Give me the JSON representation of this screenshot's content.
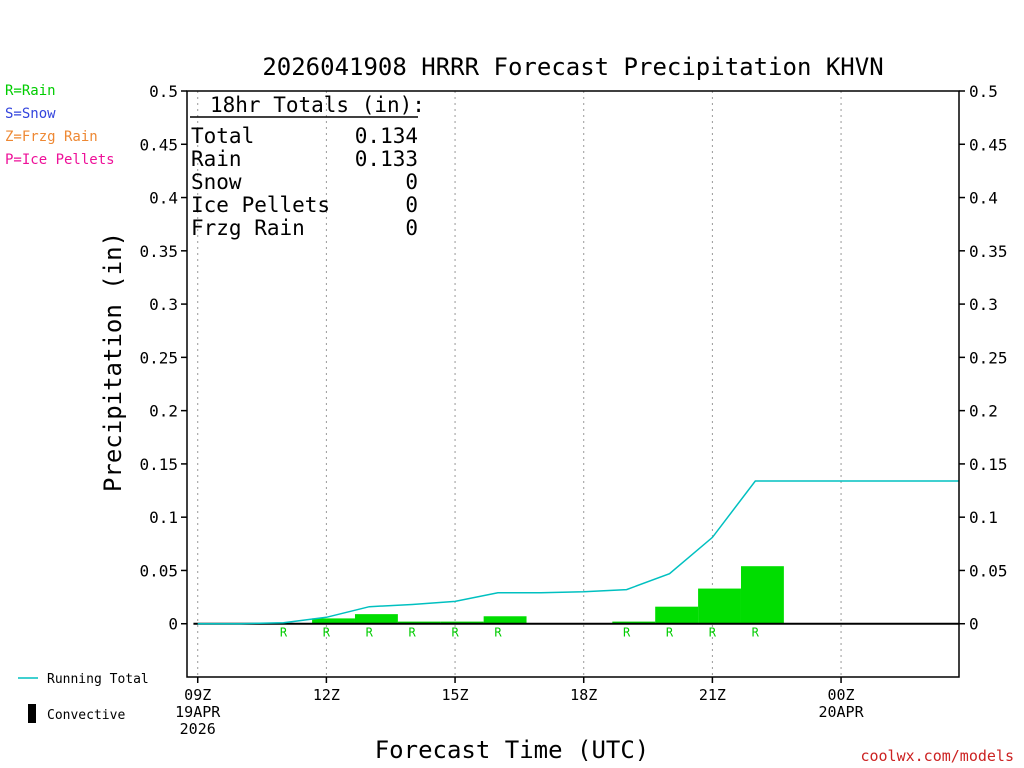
{
  "chart_data": {
    "type": "bar",
    "title": "2026041908 HRRR Forecast Precipitation KHVN",
    "xlabel": "Forecast Time (UTC)",
    "ylabel": "Precipitation (in)",
    "ylim": [
      -0.05,
      0.5
    ],
    "yticks": [
      "0",
      "0.05",
      "0.1",
      "0.15",
      "0.2",
      "0.25",
      "0.3",
      "0.35",
      "0.4",
      "0.45",
      "0.5"
    ],
    "xlim_hours": [
      8.75,
      26.75
    ],
    "xticks": [
      {
        "hour": 9,
        "lines": [
          "09Z",
          "19APR",
          "2026"
        ]
      },
      {
        "hour": 12,
        "lines": [
          "12Z"
        ]
      },
      {
        "hour": 15,
        "lines": [
          "15Z"
        ]
      },
      {
        "hour": 18,
        "lines": [
          "18Z"
        ]
      },
      {
        "hour": 21,
        "lines": [
          "21Z"
        ]
      },
      {
        "hour": 24,
        "lines": [
          "00Z",
          "20APR"
        ]
      }
    ],
    "bars": [
      {
        "hour": 12,
        "value": 0.005,
        "type": "R"
      },
      {
        "hour": 13,
        "value": 0.009,
        "type": "R"
      },
      {
        "hour": 14,
        "value": 0.002,
        "type": "R"
      },
      {
        "hour": 15,
        "value": 0.002,
        "type": "R"
      },
      {
        "hour": 16,
        "value": 0.007,
        "type": "R"
      },
      {
        "hour": 19,
        "value": 0.002,
        "type": "R"
      },
      {
        "hour": 20,
        "value": 0.016,
        "type": "R"
      },
      {
        "hour": 21,
        "value": 0.033,
        "type": "R"
      },
      {
        "hour": 22,
        "value": 0.054,
        "type": "R"
      }
    ],
    "type_markers": [
      {
        "hour": 11,
        "label": "R"
      },
      {
        "hour": 12,
        "label": "R"
      },
      {
        "hour": 13,
        "label": "R"
      },
      {
        "hour": 14,
        "label": "R"
      },
      {
        "hour": 15,
        "label": "R"
      },
      {
        "hour": 16,
        "label": "R"
      },
      {
        "hour": 19,
        "label": "R"
      },
      {
        "hour": 20,
        "label": "R"
      },
      {
        "hour": 21,
        "label": "R"
      },
      {
        "hour": 22,
        "label": "R"
      }
    ],
    "running_total": {
      "name": "Running Total",
      "color": "#00c0c0",
      "points": [
        [
          9,
          0
        ],
        [
          10,
          0
        ],
        [
          11,
          0.001
        ],
        [
          12,
          0.006
        ],
        [
          13,
          0.016
        ],
        [
          14,
          0.018
        ],
        [
          15,
          0.021
        ],
        [
          16,
          0.029
        ],
        [
          17,
          0.029
        ],
        [
          18,
          0.03
        ],
        [
          19,
          0.032
        ],
        [
          20,
          0.047
        ],
        [
          21,
          0.081
        ],
        [
          22,
          0.134
        ],
        [
          26.75,
          0.134
        ]
      ]
    },
    "bar_color": "#00dd00",
    "grid": true,
    "totals_box": {
      "heading": "18hr Totals (in):",
      "rows": [
        {
          "label": "Total",
          "value": "0.134"
        },
        {
          "label": "Rain",
          "value": "0.133"
        },
        {
          "label": "Snow",
          "value": "0"
        },
        {
          "label": "Ice Pellets",
          "value": "0"
        },
        {
          "label": "Frzg Rain",
          "value": "0"
        }
      ]
    },
    "type_legend": [
      {
        "text": "R=Rain",
        "color": "#00cc00"
      },
      {
        "text": "S=Snow",
        "color": "#3344dd"
      },
      {
        "text": "Z=Frzg Rain",
        "color": "#ee8833"
      },
      {
        "text": "P=Ice Pellets",
        "color": "#ee1199"
      }
    ],
    "line_legend": {
      "running_total": "Running Total",
      "convective": "Convective"
    },
    "credit": "coolwx.com/models",
    "credit_color": "#cc2222"
  }
}
